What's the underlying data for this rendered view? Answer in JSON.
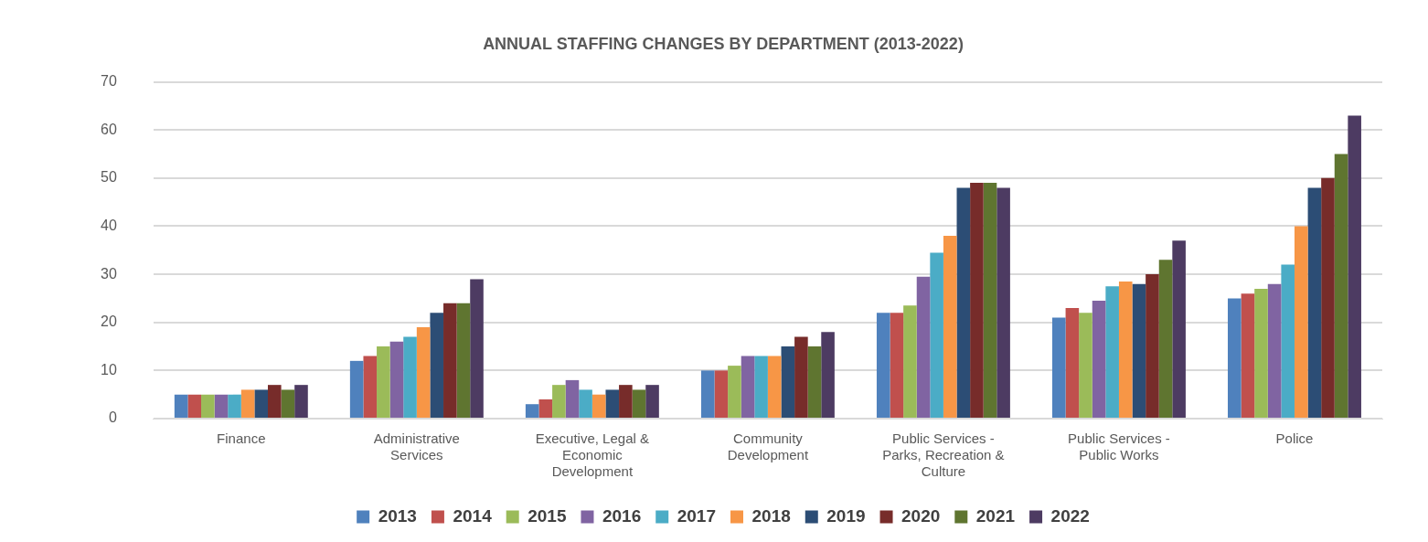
{
  "chart_data": {
    "type": "bar",
    "title": "ANNUAL STAFFING CHANGES BY DEPARTMENT (2013-2022)",
    "categories": [
      "Finance",
      "Administrative Services",
      "Executive, Legal & Economic Development",
      "Community Development",
      "Public Services - Parks, Recreation & Culture",
      "Public Services - Public Works",
      "Police"
    ],
    "series": [
      {
        "name": "2013",
        "color": "#4f81bd",
        "values": [
          5,
          12,
          3,
          10,
          22,
          21,
          25
        ]
      },
      {
        "name": "2014",
        "color": "#c0504d",
        "values": [
          5,
          13,
          4,
          10,
          22,
          23,
          26
        ]
      },
      {
        "name": "2015",
        "color": "#9bbb59",
        "values": [
          5,
          15,
          7,
          11,
          23.5,
          22,
          27
        ]
      },
      {
        "name": "2016",
        "color": "#8064a2",
        "values": [
          5,
          16,
          8,
          13,
          29.5,
          24.5,
          28
        ]
      },
      {
        "name": "2017",
        "color": "#4bacc6",
        "values": [
          5,
          17,
          6,
          13,
          34.5,
          27.5,
          32
        ]
      },
      {
        "name": "2018",
        "color": "#f79646",
        "values": [
          6,
          19,
          5,
          13,
          38,
          28.5,
          40
        ]
      },
      {
        "name": "2019",
        "color": "#2c4d75",
        "values": [
          6,
          22,
          6,
          15,
          48,
          28,
          48
        ]
      },
      {
        "name": "2020",
        "color": "#772c2a",
        "values": [
          7,
          24,
          7,
          17,
          49,
          30,
          50
        ]
      },
      {
        "name": "2021",
        "color": "#5f7530",
        "values": [
          6,
          24,
          6,
          15,
          49,
          33,
          55
        ]
      },
      {
        "name": "2022",
        "color": "#4d3b62",
        "values": [
          7,
          29,
          7,
          18,
          48,
          37,
          63
        ]
      }
    ],
    "ylim": [
      0,
      70
    ],
    "yticks": [
      0,
      10,
      20,
      30,
      40,
      50,
      60,
      70
    ],
    "grid": "y",
    "legend": "bottom"
  }
}
